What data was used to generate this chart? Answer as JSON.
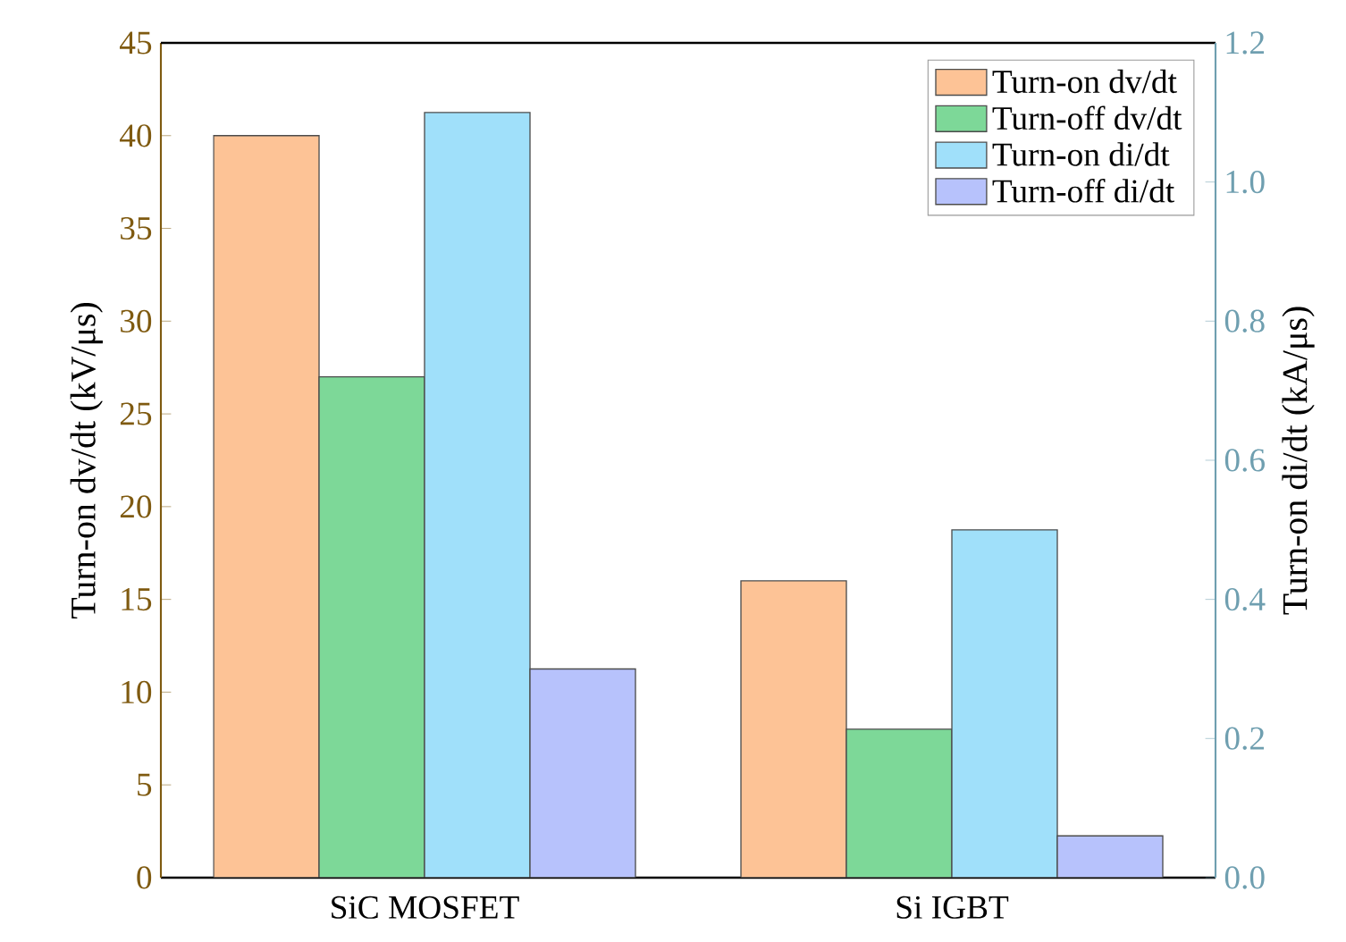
{
  "chart_data": {
    "type": "bar",
    "ylabel": "Turn-on dv/dt (kV/μs)",
    "y2label": "Turn-on di/dt (kA/μs)",
    "categories": [
      "SiC MOSFET",
      "Si IGBT"
    ],
    "series": [
      {
        "name": "Turn-on dv/dt",
        "color": "#fdc396",
        "values": [
          40,
          16
        ]
      },
      {
        "name": "Turn-off dv/dt",
        "color": "#7dd898",
        "values": [
          27,
          8
        ]
      },
      {
        "name": "Turn-on di/dt",
        "color": "#a0e0fa",
        "values": [
          1.1,
          0.5
        ],
        "axis": "y2"
      },
      {
        "name": "Turn-off di/dt",
        "color": "#b7c2fc",
        "values": [
          0.3,
          0.06
        ],
        "axis": "y2"
      }
    ],
    "ylim": [
      0,
      45
    ],
    "yticks": [
      0,
      5,
      10,
      15,
      20,
      25,
      30,
      35,
      40,
      45
    ],
    "y2lim": [
      0,
      1.2
    ],
    "y2ticks": [
      {
        "value": 0,
        "label": "0.0"
      },
      0.2,
      0.4,
      0.6,
      0.8,
      {
        "value": 1,
        "label": "1.0"
      },
      1.2
    ],
    "legend": "top right",
    "grid": false
  }
}
